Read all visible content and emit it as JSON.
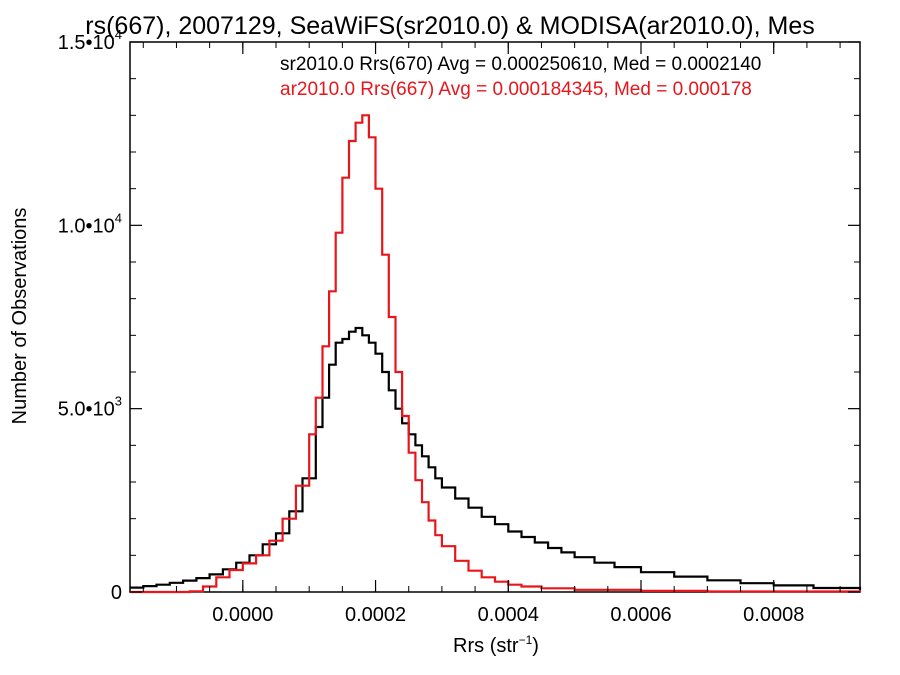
{
  "chart_data": {
    "type": "histogram",
    "title": "rs(667), 2007129, SeaWiFS(sr2010.0) & MODISA(ar2010.0), Mes",
    "xlabel": "Rrs (str",
    "xlabel_sup": "−1",
    "xlabel_tail": ")",
    "ylabel": "Number of Observations",
    "xlim": [
      -0.00017,
      0.00093
    ],
    "ylim": [
      0,
      15000
    ],
    "x_ticks": [
      {
        "value": 0.0,
        "label": "0.0000"
      },
      {
        "value": 0.0002,
        "label": "0.0002"
      },
      {
        "value": 0.0004,
        "label": "0.0004"
      },
      {
        "value": 0.0006,
        "label": "0.0006"
      },
      {
        "value": 0.0008,
        "label": "0.0008"
      }
    ],
    "y_ticks": [
      {
        "value": 0,
        "label": "0",
        "sup": ""
      },
      {
        "value": 5000,
        "label": "5.0•10",
        "sup": "3"
      },
      {
        "value": 10000,
        "label": "1.0•10",
        "sup": "4"
      },
      {
        "value": 15000,
        "label": "1.5•10",
        "sup": "4"
      }
    ],
    "legend": [
      {
        "text": "sr2010.0 Rrs(670) Avg = 0.000250610, Med = 0.0002140",
        "color": "#000000"
      },
      {
        "text": "ar2010.0 Rrs(667) Avg = 0.000184345, Med = 0.000178",
        "color": "#e8161b"
      }
    ],
    "series": [
      {
        "color": "#000000",
        "x": [
          -0.00017,
          -0.00015,
          -0.00013,
          -0.00011,
          -9e-05,
          -7e-05,
          -5e-05,
          -3e-05,
          -1e-05,
          1e-05,
          3e-05,
          5e-05,
          7e-05,
          9e-05,
          0.00011,
          0.00012,
          0.00013,
          0.00014,
          0.00015,
          0.00016,
          0.00017,
          0.00018,
          0.00019,
          0.0002,
          0.00021,
          0.00022,
          0.00023,
          0.00024,
          0.00025,
          0.00026,
          0.00027,
          0.00028,
          0.00029,
          0.0003,
          0.00032,
          0.00034,
          0.00036,
          0.00038,
          0.0004,
          0.00042,
          0.00044,
          0.00046,
          0.00048,
          0.0005,
          0.00053,
          0.00056,
          0.0006,
          0.00065,
          0.0007,
          0.00075,
          0.0008,
          0.00086,
          0.00093
        ],
        "values": [
          120,
          160,
          200,
          250,
          310,
          380,
          480,
          620,
          800,
          1000,
          1300,
          1600,
          2200,
          3100,
          4500,
          5300,
          6200,
          6800,
          6900,
          7100,
          7200,
          7000,
          6800,
          6500,
          6000,
          5500,
          5000,
          4600,
          4300,
          4000,
          3700,
          3400,
          3100,
          2850,
          2550,
          2300,
          2050,
          1850,
          1650,
          1500,
          1350,
          1200,
          1080,
          950,
          800,
          680,
          540,
          420,
          320,
          240,
          180,
          110,
          60
        ]
      },
      {
        "color": "#e8161b",
        "x": [
          -0.00017,
          -0.0001,
          -8e-05,
          -6e-05,
          -4e-05,
          -2e-05,
          0.0,
          2e-05,
          4e-05,
          6e-05,
          8e-05,
          0.0001,
          0.00011,
          0.00012,
          0.00013,
          0.00014,
          0.00015,
          0.00016,
          0.00017,
          0.00018,
          0.00019,
          0.0002,
          0.00021,
          0.00022,
          0.00023,
          0.00024,
          0.00025,
          0.00026,
          0.00027,
          0.00028,
          0.00029,
          0.0003,
          0.00032,
          0.00034,
          0.00036,
          0.00038,
          0.0004,
          0.00042,
          0.00045,
          0.0005,
          0.0006,
          0.0007,
          0.00093
        ],
        "values": [
          0,
          0,
          20,
          150,
          400,
          600,
          780,
          1000,
          1400,
          2000,
          2900,
          4300,
          5300,
          6700,
          8200,
          9800,
          11300,
          12300,
          12800,
          13000,
          12400,
          11000,
          9200,
          7500,
          6000,
          4800,
          3800,
          3050,
          2450,
          1950,
          1550,
          1250,
          850,
          580,
          400,
          280,
          200,
          150,
          100,
          60,
          30,
          15,
          0
        ]
      }
    ]
  }
}
